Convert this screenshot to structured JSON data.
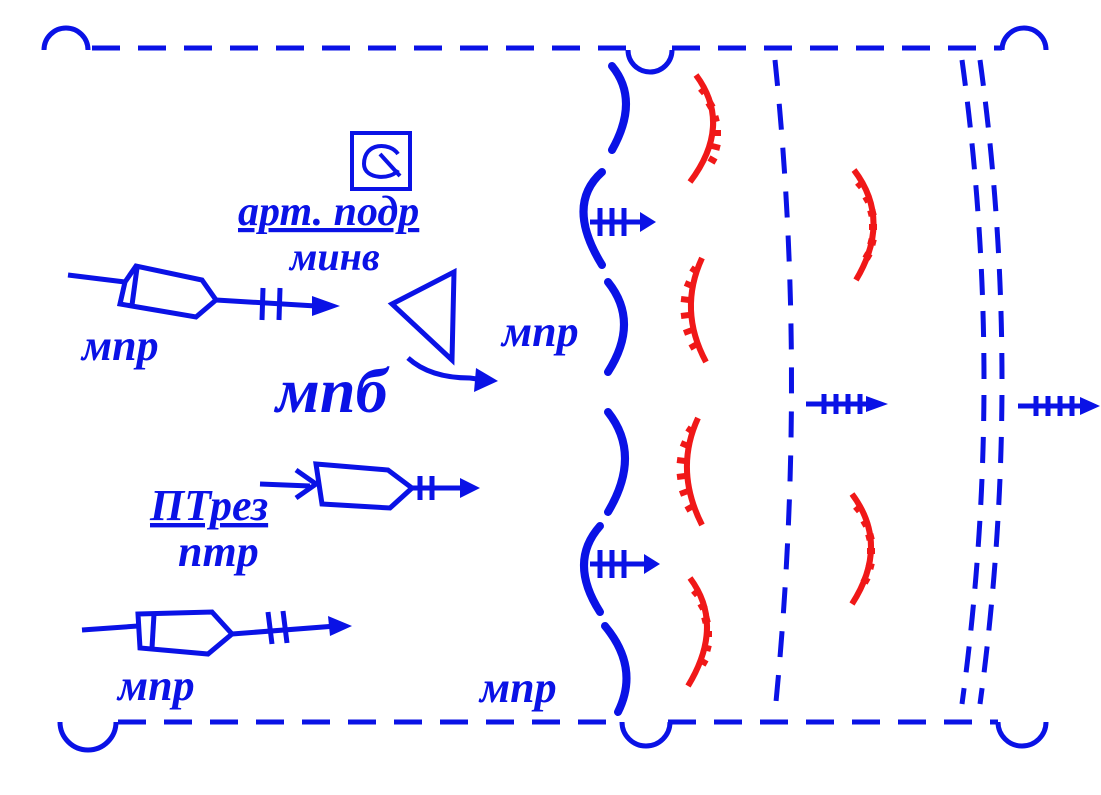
{
  "colors": {
    "own": "#0a12e6",
    "enemy": "#f01818"
  },
  "icons": [
    "mortar-icon",
    "tank-icon",
    "antitank-gun-icon",
    "artillery-unit-icon"
  ],
  "labels": {
    "art_unit": "арт. подр",
    "minv": "минв",
    "mpr_top_left": "мпр",
    "mpb": "мпб",
    "ptrez": "ПТрез",
    "ptr": "птр",
    "mpr_bottom_left": "мпр",
    "mpr_center": "мпр",
    "mpr_bottom_center": "мпр"
  }
}
